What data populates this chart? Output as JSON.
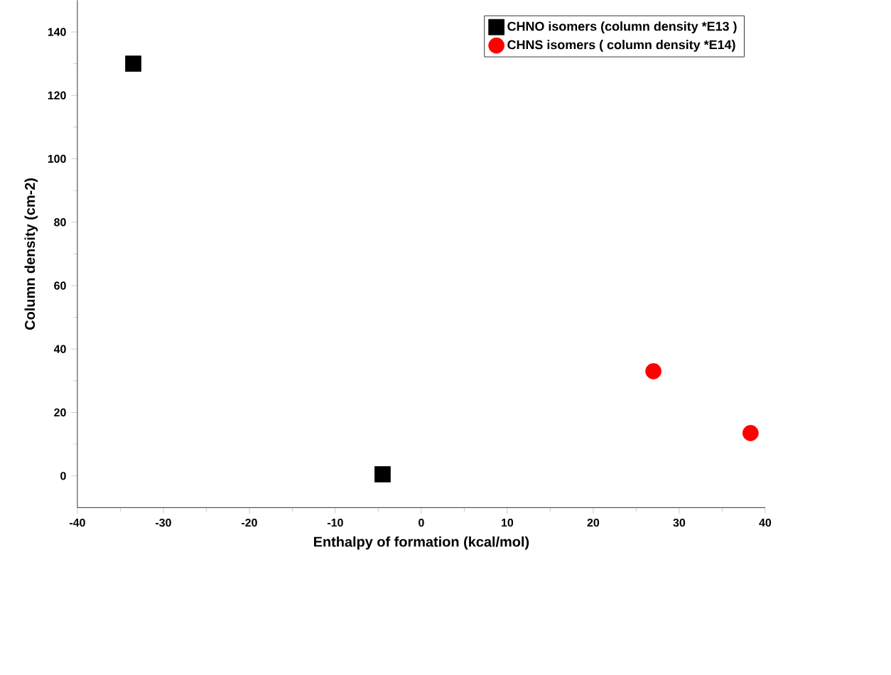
{
  "chart_data": {
    "type": "scatter",
    "xlabel": "Enthalpy of formation (kcal/mol)",
    "ylabel": "Column density (cm-2)",
    "series": [
      {
        "name": "CHNO isomers (column density *E13 )",
        "color": "#000000",
        "marker": "square",
        "x": [
          -33.5,
          -4.5
        ],
        "values": [
          130,
          0.5
        ]
      },
      {
        "name": "CHNS isomers ( column density *E14)",
        "color": "#ff0000",
        "marker": "circle",
        "x": [
          27,
          38.3
        ],
        "values": [
          33,
          13.5
        ]
      }
    ],
    "xlim": [
      -40,
      40
    ],
    "ylim": [
      -10,
      150
    ],
    "xticks": [
      -40,
      -30,
      -20,
      -10,
      0,
      10,
      20,
      30,
      40
    ],
    "yticks": [
      0,
      20,
      40,
      60,
      80,
      100,
      120,
      140
    ],
    "grid": false,
    "legend": "top right"
  }
}
